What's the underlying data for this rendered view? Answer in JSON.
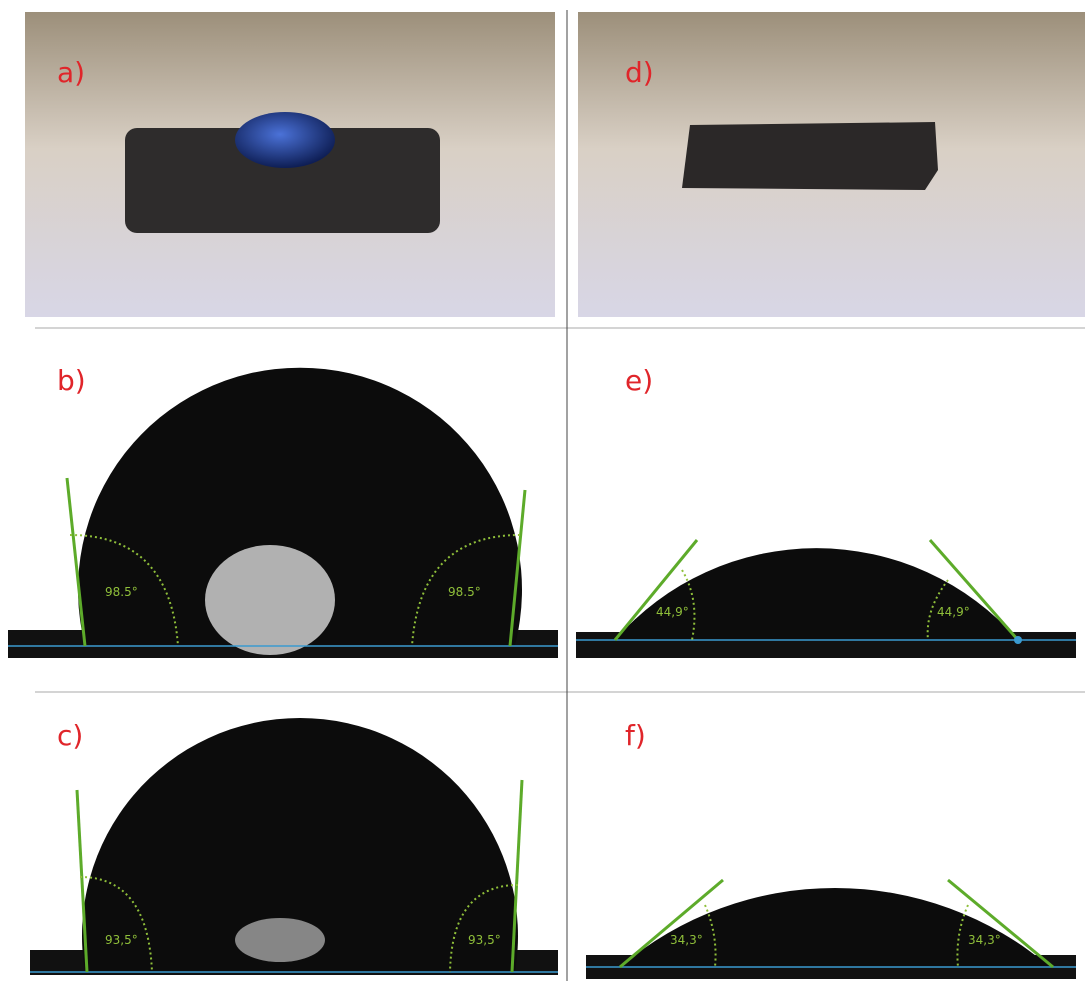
{
  "panels": [
    {
      "label": "a)"
    },
    {
      "label": "b)",
      "angles": [
        "98.5°",
        "98.5°"
      ]
    },
    {
      "label": "c)",
      "angles": [
        "93,5°",
        "93,5°"
      ]
    },
    {
      "label": "d)"
    },
    {
      "label": "e)",
      "angles": [
        "44,9°",
        "44,9°"
      ]
    },
    {
      "label": "f)",
      "angles": [
        "34,3°",
        "34,3°"
      ]
    }
  ]
}
